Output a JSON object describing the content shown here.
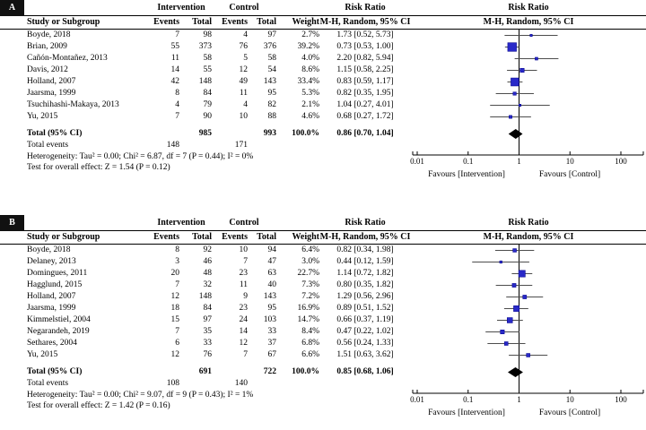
{
  "chart_data": [
    {
      "type": "forest",
      "panel_label": "A",
      "columns": {
        "study": "Study or Subgroup",
        "group1": "Intervention",
        "group2": "Control",
        "events": "Events",
        "total": "Total",
        "events2": "Events",
        "total2": "Total",
        "weight": "Weight",
        "risk_ratio": "Risk Ratio",
        "risk_ratio_plot": "Risk Ratio",
        "method": "M-H, Random, 95% CI",
        "method_plot": "M-H, Random, 95% CI"
      },
      "studies": [
        {
          "name": "Boyde, 2018",
          "e1": "7",
          "t1": "98",
          "e2": "4",
          "t2": "97",
          "weight": "2.7%",
          "rr": 1.73,
          "lo": 0.52,
          "hi": 5.73,
          "label": "1.73 [0.52, 5.73]"
        },
        {
          "name": "Brian, 2009",
          "e1": "55",
          "t1": "373",
          "e2": "76",
          "t2": "376",
          "weight": "39.2%",
          "rr": 0.73,
          "lo": 0.53,
          "hi": 1.0,
          "label": "0.73 [0.53, 1.00]"
        },
        {
          "name": "Cañón-Montañez, 2013",
          "e1": "11",
          "t1": "58",
          "e2": "5",
          "t2": "58",
          "weight": "4.0%",
          "rr": 2.2,
          "lo": 0.82,
          "hi": 5.94,
          "label": "2.20 [0.82, 5.94]"
        },
        {
          "name": "Davis, 2012",
          "e1": "14",
          "t1": "55",
          "e2": "12",
          "t2": "54",
          "weight": "8.6%",
          "rr": 1.15,
          "lo": 0.58,
          "hi": 2.25,
          "label": "1.15 [0.58, 2.25]"
        },
        {
          "name": "Holland, 2007",
          "e1": "42",
          "t1": "148",
          "e2": "49",
          "t2": "143",
          "weight": "33.4%",
          "rr": 0.83,
          "lo": 0.59,
          "hi": 1.17,
          "label": "0.83 [0.59, 1.17]"
        },
        {
          "name": "Jaarsma, 1999",
          "e1": "8",
          "t1": "84",
          "e2": "11",
          "t2": "95",
          "weight": "5.3%",
          "rr": 0.82,
          "lo": 0.35,
          "hi": 1.95,
          "label": "0.82 [0.35, 1.95]"
        },
        {
          "name": "Tsuchihashi-Makaya, 2013",
          "e1": "4",
          "t1": "79",
          "e2": "4",
          "t2": "82",
          "weight": "2.1%",
          "rr": 1.04,
          "lo": 0.27,
          "hi": 4.01,
          "label": "1.04 [0.27, 4.01]"
        },
        {
          "name": "Yu, 2015",
          "e1": "7",
          "t1": "90",
          "e2": "10",
          "t2": "88",
          "weight": "4.6%",
          "rr": 0.68,
          "lo": 0.27,
          "hi": 1.72,
          "label": "0.68 [0.27, 1.72]"
        }
      ],
      "total": {
        "name": "Total (95% CI)",
        "t1": "985",
        "t2": "993",
        "weight": "100.0%",
        "rr": 0.86,
        "lo": 0.7,
        "hi": 1.04,
        "label": "0.86 [0.70, 1.04]"
      },
      "total_events": {
        "name": "Total events",
        "e1": "148",
        "e2": "171"
      },
      "heterogeneity": "Heterogeneity: Tau² = 0.00; Chi² = 6.87, df = 7 (P = 0.44); I² = 0%",
      "overall": "Test for overall effect: Z = 1.54 (P = 0.12)",
      "axis": {
        "scale": "log",
        "ticks": [
          0.01,
          0.1,
          1,
          10,
          100
        ],
        "tick_labels": [
          "0.01",
          "0.1",
          "1",
          "10",
          "100"
        ],
        "favours_left": "Favours [Intervention]",
        "favours_right": "Favours [Control]"
      },
      "colors": {
        "marker_fill": "#2929c8",
        "marker_stroke": "#00008b",
        "ci_line": "#4d4d4d",
        "diamond": "#000000",
        "axis": "#000000"
      }
    },
    {
      "type": "forest",
      "panel_label": "B",
      "columns": {
        "study": "Study or Subgroup",
        "group1": "Intervention",
        "group2": "Control",
        "events": "Events",
        "total": "Total",
        "events2": "Events",
        "total2": "Total",
        "weight": "Weight",
        "risk_ratio": "Risk Ratio",
        "risk_ratio_plot": "Risk Ratio",
        "method": "M-H, Random, 95% CI",
        "method_plot": "M-H, Random, 95% CI"
      },
      "studies": [
        {
          "name": "Boyde, 2018",
          "e1": "8",
          "t1": "92",
          "e2": "10",
          "t2": "94",
          "weight": "6.4%",
          "rr": 0.82,
          "lo": 0.34,
          "hi": 1.98,
          "label": "0.82 [0.34, 1.98]"
        },
        {
          "name": "Delaney, 2013",
          "e1": "3",
          "t1": "46",
          "e2": "7",
          "t2": "47",
          "weight": "3.0%",
          "rr": 0.44,
          "lo": 0.12,
          "hi": 1.59,
          "label": "0.44 [0.12, 1.59]"
        },
        {
          "name": "Domingues, 2011",
          "e1": "20",
          "t1": "48",
          "e2": "23",
          "t2": "63",
          "weight": "22.7%",
          "rr": 1.14,
          "lo": 0.72,
          "hi": 1.82,
          "label": "1.14 [0.72, 1.82]"
        },
        {
          "name": "Hagglund, 2015",
          "e1": "7",
          "t1": "32",
          "e2": "11",
          "t2": "40",
          "weight": "7.3%",
          "rr": 0.8,
          "lo": 0.35,
          "hi": 1.82,
          "label": "0.80 [0.35, 1.82]"
        },
        {
          "name": "Holland, 2007",
          "e1": "12",
          "t1": "148",
          "e2": "9",
          "t2": "143",
          "weight": "7.2%",
          "rr": 1.29,
          "lo": 0.56,
          "hi": 2.96,
          "label": "1.29 [0.56, 2.96]"
        },
        {
          "name": "Jaarsma, 1999",
          "e1": "18",
          "t1": "84",
          "e2": "23",
          "t2": "95",
          "weight": "16.9%",
          "rr": 0.89,
          "lo": 0.51,
          "hi": 1.52,
          "label": "0.89 [0.51, 1.52]"
        },
        {
          "name": "Kimmelstiel, 2004",
          "e1": "15",
          "t1": "97",
          "e2": "24",
          "t2": "103",
          "weight": "14.7%",
          "rr": 0.66,
          "lo": 0.37,
          "hi": 1.19,
          "label": "0.66 [0.37, 1.19]"
        },
        {
          "name": "Negarandeh, 2019",
          "e1": "7",
          "t1": "35",
          "e2": "14",
          "t2": "33",
          "weight": "8.4%",
          "rr": 0.47,
          "lo": 0.22,
          "hi": 1.02,
          "label": "0.47 [0.22, 1.02]"
        },
        {
          "name": "Sethares, 2004",
          "e1": "6",
          "t1": "33",
          "e2": "12",
          "t2": "37",
          "weight": "6.8%",
          "rr": 0.56,
          "lo": 0.24,
          "hi": 1.33,
          "label": "0.56 [0.24, 1.33]"
        },
        {
          "name": "Yu, 2015",
          "e1": "12",
          "t1": "76",
          "e2": "7",
          "t2": "67",
          "weight": "6.6%",
          "rr": 1.51,
          "lo": 0.63,
          "hi": 3.62,
          "label": "1.51 [0.63, 3.62]"
        }
      ],
      "total": {
        "name": "Total (95% CI)",
        "t1": "691",
        "t2": "722",
        "weight": "100.0%",
        "rr": 0.85,
        "lo": 0.68,
        "hi": 1.06,
        "label": "0.85 [0.68, 1.06]"
      },
      "total_events": {
        "name": "Total events",
        "e1": "108",
        "e2": "140"
      },
      "heterogeneity": "Heterogeneity: Tau² = 0.00; Chi² = 9.07, df = 9 (P = 0.43); I² = 1%",
      "overall": "Test for overall effect: Z = 1.42 (P = 0.16)",
      "axis": {
        "scale": "log",
        "ticks": [
          0.01,
          0.1,
          1,
          10,
          100
        ],
        "tick_labels": [
          "0.01",
          "0.1",
          "1",
          "10",
          "100"
        ],
        "favours_left": "Favours [Intervention]",
        "favours_right": "Favours [Control]"
      },
      "colors": {
        "marker_fill": "#2929c8",
        "marker_stroke": "#00008b",
        "ci_line": "#4d4d4d",
        "diamond": "#000000",
        "axis": "#000000"
      }
    }
  ]
}
